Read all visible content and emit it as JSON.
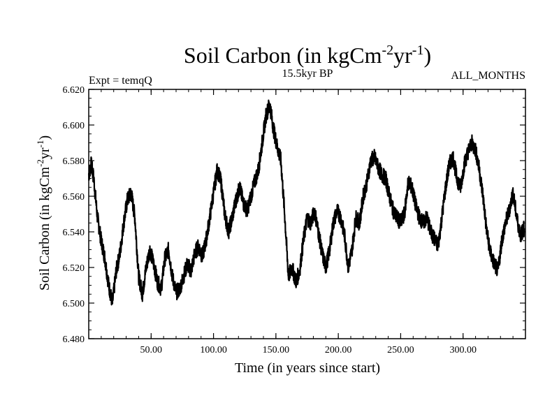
{
  "chart_data": {
    "type": "line",
    "title_main": "Soil Carbon (in kgCm",
    "title_sup1": "-2",
    "title_mid": "yr",
    "title_sup2": "-1",
    "title_end": ")",
    "subtitle": "15.5kyr BP",
    "left_label": "Expt = temqQ",
    "right_label": "ALL_MONTHS",
    "xlabel": "Time (in years since start)",
    "ylabel_main": "Soil Carbon (in kgCm",
    "ylabel_sup1": "-2",
    "ylabel_mid": "yr",
    "ylabel_sup2": "-1",
    "ylabel_end": ")",
    "xlim": [
      0,
      350
    ],
    "ylim": [
      6.48,
      6.62
    ],
    "xticks": [
      50,
      100,
      150,
      200,
      250,
      300
    ],
    "xtick_labels": [
      "50.00",
      "100.00",
      "150.00",
      "200.00",
      "250.00",
      "300.00"
    ],
    "yticks": [
      6.48,
      6.5,
      6.52,
      6.54,
      6.56,
      6.58,
      6.6,
      6.62
    ],
    "ytick_labels": [
      "6.480",
      "6.500",
      "6.520",
      "6.540",
      "6.560",
      "6.580",
      "6.600",
      "6.620"
    ],
    "series": [
      {
        "name": "Soil Carbon",
        "x": [
          0,
          2,
          4,
          7,
          10,
          13,
          16,
          19,
          22,
          25,
          28,
          31,
          34,
          37,
          40,
          43,
          46,
          49,
          52,
          55,
          58,
          61,
          64,
          67,
          70,
          73,
          76,
          79,
          82,
          85,
          88,
          91,
          94,
          97,
          100,
          103,
          106,
          109,
          112,
          115,
          118,
          121,
          124,
          127,
          130,
          133,
          136,
          139,
          142,
          145,
          148,
          151,
          154,
          157,
          160,
          163,
          166,
          169,
          172,
          175,
          178,
          181,
          184,
          187,
          190,
          193,
          196,
          199,
          202,
          205,
          208,
          211,
          214,
          217,
          220,
          223,
          226,
          229,
          232,
          235,
          238,
          241,
          244,
          247,
          250,
          253,
          256,
          259,
          262,
          265,
          268,
          271,
          274,
          277,
          280,
          283,
          286,
          289,
          292,
          295,
          298,
          301,
          304,
          307,
          310,
          313,
          316,
          319,
          322,
          325,
          328,
          331,
          334,
          337,
          340,
          343,
          346,
          349
        ],
        "values": [
          6.572,
          6.578,
          6.57,
          6.548,
          6.535,
          6.525,
          6.51,
          6.5,
          6.518,
          6.528,
          6.545,
          6.558,
          6.562,
          6.548,
          6.515,
          6.505,
          6.52,
          6.53,
          6.522,
          6.512,
          6.508,
          6.525,
          6.53,
          6.515,
          6.506,
          6.508,
          6.515,
          6.522,
          6.518,
          6.528,
          6.532,
          6.526,
          6.535,
          6.548,
          6.562,
          6.575,
          6.568,
          6.55,
          6.54,
          6.548,
          6.558,
          6.565,
          6.556,
          6.552,
          6.56,
          6.568,
          6.575,
          6.59,
          6.605,
          6.612,
          6.598,
          6.588,
          6.58,
          6.55,
          6.515,
          6.52,
          6.512,
          6.518,
          6.535,
          6.548,
          6.545,
          6.552,
          6.54,
          6.528,
          6.52,
          6.53,
          6.545,
          6.552,
          6.548,
          6.538,
          6.52,
          6.53,
          6.548,
          6.545,
          6.56,
          6.568,
          6.58,
          6.582,
          6.576,
          6.572,
          6.57,
          6.56,
          6.552,
          6.548,
          6.545,
          6.55,
          6.568,
          6.565,
          6.555,
          6.548,
          6.545,
          6.548,
          6.54,
          6.536,
          6.532,
          6.548,
          6.565,
          6.578,
          6.582,
          6.57,
          6.565,
          6.578,
          6.585,
          6.59,
          6.586,
          6.575,
          6.56,
          6.54,
          6.528,
          6.522,
          6.518,
          6.535,
          6.545,
          6.552,
          6.562,
          6.548,
          6.538,
          6.542
        ]
      }
    ]
  }
}
